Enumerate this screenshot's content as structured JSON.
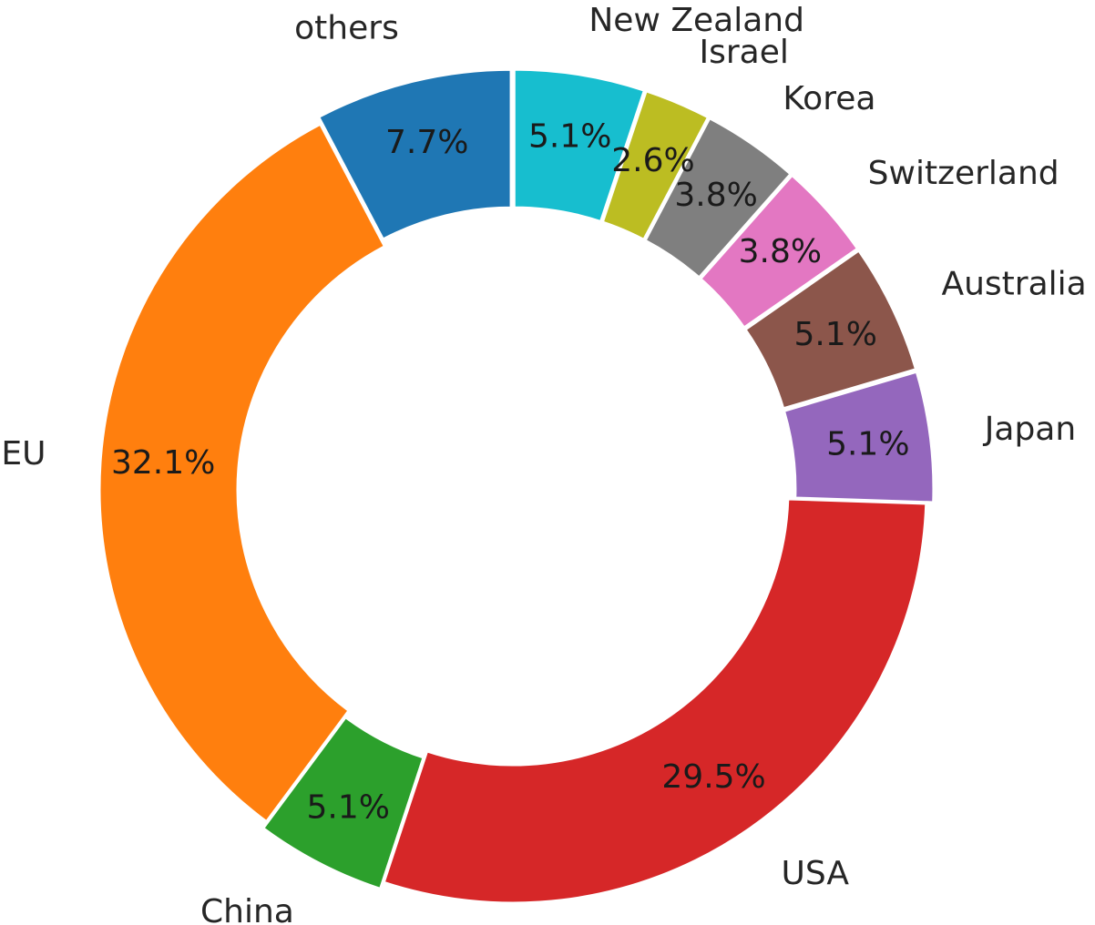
{
  "chart_data": {
    "type": "pie",
    "donut": true,
    "start_angle_deg": 90,
    "direction": "counterclockwise",
    "slice_edge_color": "#ffffff",
    "categories": [
      "others",
      "EU",
      "China",
      "USA",
      "Japan",
      "Australia",
      "Switzerland",
      "Korea",
      "Israel",
      "New Zealand"
    ],
    "values": [
      7.7,
      32.1,
      5.1,
      29.5,
      5.1,
      5.1,
      3.8,
      3.8,
      2.6,
      5.1
    ],
    "pct_labels": [
      "7.7%",
      "32.1%",
      "5.1%",
      "29.5%",
      "5.1%",
      "5.1%",
      "3.8%",
      "3.8%",
      "2.6%",
      "5.1%"
    ],
    "colors": [
      "#1f77b4",
      "#ff7f0e",
      "#2ca02c",
      "#d62728",
      "#9467bd",
      "#8c564b",
      "#e377c2",
      "#7f7f7f",
      "#bcbd22",
      "#17becf"
    ],
    "exploded": [
      true,
      false,
      true,
      false,
      true,
      true,
      true,
      true,
      true,
      true
    ],
    "title": "",
    "legend": "none"
  }
}
